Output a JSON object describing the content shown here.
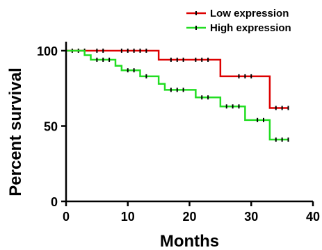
{
  "chart_data": {
    "type": "line",
    "subtype": "kaplan-meier survival curve",
    "xlabel": "Months",
    "ylabel": "Percent survival",
    "xlim": [
      0,
      40
    ],
    "ylim": [
      0,
      100
    ],
    "xticks": [
      0,
      10,
      20,
      30,
      40
    ],
    "yticks": [
      0,
      50,
      100
    ],
    "legend_position": "top-right",
    "series": [
      {
        "name": "Low expression",
        "color": "#dd0000",
        "steps": [
          {
            "x": 0,
            "y": 100
          },
          {
            "x": 15,
            "y": 94
          },
          {
            "x": 25,
            "y": 83
          },
          {
            "x": 33,
            "y": 62
          },
          {
            "x": 36,
            "y": 62
          }
        ],
        "censored": [
          {
            "x": 1,
            "y": 100
          },
          {
            "x": 2,
            "y": 100
          },
          {
            "x": 3,
            "y": 100
          },
          {
            "x": 5,
            "y": 100
          },
          {
            "x": 6,
            "y": 100
          },
          {
            "x": 9,
            "y": 100
          },
          {
            "x": 10,
            "y": 100
          },
          {
            "x": 11,
            "y": 100
          },
          {
            "x": 12,
            "y": 100
          },
          {
            "x": 13,
            "y": 100
          },
          {
            "x": 17,
            "y": 94
          },
          {
            "x": 18,
            "y": 94
          },
          {
            "x": 19,
            "y": 94
          },
          {
            "x": 21,
            "y": 94
          },
          {
            "x": 22,
            "y": 94
          },
          {
            "x": 23,
            "y": 94
          },
          {
            "x": 28,
            "y": 83
          },
          {
            "x": 29,
            "y": 83
          },
          {
            "x": 30,
            "y": 83
          },
          {
            "x": 34,
            "y": 62
          },
          {
            "x": 35,
            "y": 62
          },
          {
            "x": 36,
            "y": 62
          }
        ]
      },
      {
        "name": "High expression",
        "color": "#22dd22",
        "steps": [
          {
            "x": 0,
            "y": 100
          },
          {
            "x": 3,
            "y": 97
          },
          {
            "x": 4,
            "y": 94
          },
          {
            "x": 8,
            "y": 90
          },
          {
            "x": 9,
            "y": 87
          },
          {
            "x": 12,
            "y": 83
          },
          {
            "x": 15,
            "y": 78
          },
          {
            "x": 16,
            "y": 74
          },
          {
            "x": 21,
            "y": 69
          },
          {
            "x": 25,
            "y": 63
          },
          {
            "x": 29,
            "y": 54
          },
          {
            "x": 33,
            "y": 41
          },
          {
            "x": 36,
            "y": 41
          }
        ],
        "censored": [
          {
            "x": 5,
            "y": 94
          },
          {
            "x": 6,
            "y": 94
          },
          {
            "x": 7,
            "y": 94
          },
          {
            "x": 10,
            "y": 87
          },
          {
            "x": 11,
            "y": 87
          },
          {
            "x": 13,
            "y": 83
          },
          {
            "x": 17,
            "y": 74
          },
          {
            "x": 18,
            "y": 74
          },
          {
            "x": 19,
            "y": 74
          },
          {
            "x": 22,
            "y": 69
          },
          {
            "x": 23,
            "y": 69
          },
          {
            "x": 26,
            "y": 63
          },
          {
            "x": 27,
            "y": 63
          },
          {
            "x": 28,
            "y": 63
          },
          {
            "x": 31,
            "y": 54
          },
          {
            "x": 32,
            "y": 54
          },
          {
            "x": 34,
            "y": 41
          },
          {
            "x": 35,
            "y": 41
          },
          {
            "x": 36,
            "y": 41
          }
        ]
      }
    ]
  }
}
